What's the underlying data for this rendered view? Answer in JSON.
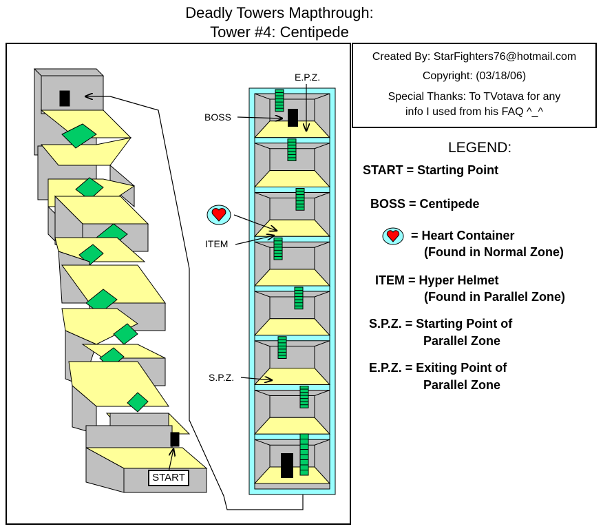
{
  "title": {
    "line1": "Deadly Towers Mapthrough:",
    "line2": "Tower #4: Centipede"
  },
  "credits": {
    "created_by": "Created By: StarFighters76@hotmail.com",
    "copyright": "Copyright:  (03/18/06)",
    "thanks1": "Special Thanks: To TVotava for any",
    "thanks2": "info I used from his FAQ ^_^"
  },
  "legend": {
    "heading": "LEGEND:",
    "start": "START = Starting Point",
    "boss": "BOSS = Centipede",
    "heart1": "= Heart Container",
    "heart2": "(Found in Normal Zone)",
    "item1": "ITEM = Hyper Helmet",
    "item2": "(Found in Parallel Zone)",
    "spz1": "S.P.Z. = Starting Point of",
    "spz2": "Parallel Zone",
    "epz1": "E.P.Z. = Exiting Point of",
    "epz2": "Parallel Zone"
  },
  "map_labels": {
    "start": "START",
    "boss": "BOSS",
    "item": "ITEM",
    "spz": "S.P.Z.",
    "epz": "E.P.Z."
  },
  "colors": {
    "floor": "#ffff99",
    "wall": "#c0c0c0",
    "stairs": "#00cc66",
    "frame_cyan": "#99ffff",
    "heart": "#ff0000"
  }
}
